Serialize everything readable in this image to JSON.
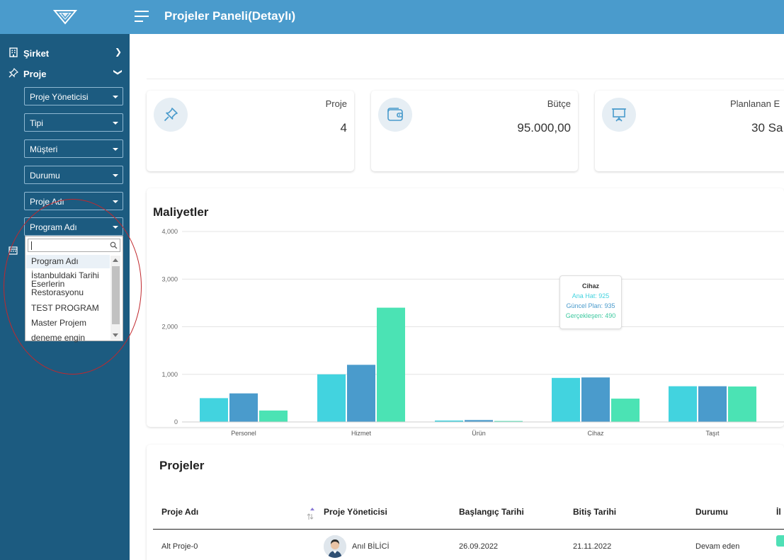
{
  "header": {
    "title": "Projeler Paneli(Detaylı)"
  },
  "sidebar": {
    "items": [
      {
        "label": "Şirket"
      },
      {
        "label": "Proje"
      }
    ],
    "filters": [
      {
        "label": "Proje Yöneticisi"
      },
      {
        "label": "Tipi"
      },
      {
        "label": "Müşteri"
      },
      {
        "label": "Durumu"
      },
      {
        "label": "Proje Adı"
      },
      {
        "label": "Program Adı"
      }
    ],
    "dropdown": {
      "options": [
        "Program Adı",
        "İstanbuldaki Tarihi Eserlerin Restorasyonu",
        "TEST PROGRAM",
        "Master Projem",
        "deneme engin"
      ],
      "selected": "Program Adı"
    }
  },
  "stats": [
    {
      "label": "Proje",
      "value": "4"
    },
    {
      "label": "Bütçe",
      "value": "95.000,00"
    },
    {
      "label": "Planlanan E",
      "value": "30 Sa"
    }
  ],
  "costs": {
    "title": "Maliyetler"
  },
  "chart_data": {
    "type": "bar",
    "categories": [
      "Personel",
      "Hizmet",
      "Ürün",
      "Cihaz",
      "Taşıt"
    ],
    "series": [
      {
        "name": "Ana Hat",
        "color": "#42d3df",
        "values": [
          500,
          1000,
          30,
          925,
          750
        ]
      },
      {
        "name": "Güncel Plan",
        "color": "#4a9bcc",
        "values": [
          600,
          1200,
          40,
          935,
          750
        ]
      },
      {
        "name": "Gerçekleşen",
        "color": "#4be3b4",
        "values": [
          240,
          2400,
          20,
          490,
          745
        ]
      }
    ],
    "yticks": [
      "0",
      "1,000",
      "2,000",
      "3,000",
      "4,000"
    ],
    "ylim": [
      0,
      4000
    ],
    "grid": true,
    "tooltip": {
      "title": "Cihaz",
      "rows": [
        "Ana Hat: 925",
        "Güncel Plan: 935",
        "Gerçekleşen: 490"
      ]
    }
  },
  "projects": {
    "title": "Projeler",
    "columns": [
      "Proje Adı",
      "Proje Yöneticisi",
      "Başlangıç Tarihi",
      "Bitiş Tarihi",
      "Durumu",
      "İl"
    ],
    "rows": [
      {
        "name": "Alt Proje-0",
        "manager": "Anıl BİLİCİ",
        "start": "26.09.2022",
        "end": "21.11.2022",
        "status": "Devam eden"
      }
    ]
  }
}
